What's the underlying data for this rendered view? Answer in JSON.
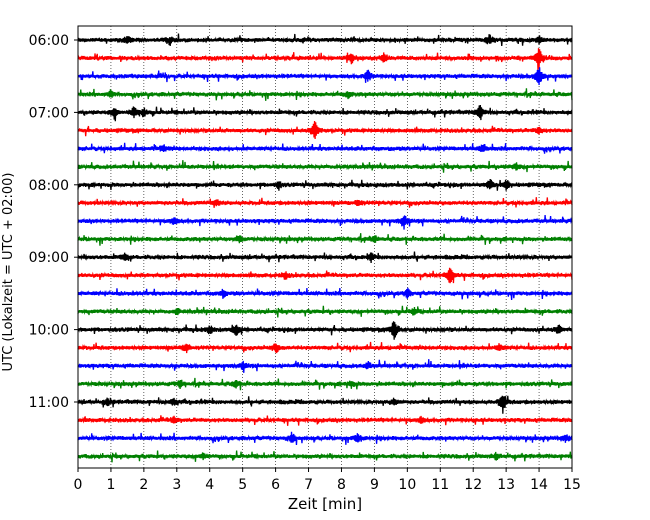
{
  "chart_data": {
    "type": "line",
    "title": "",
    "xlabel": "Zeit  [min]",
    "ylabel": "UTC (Lokalzeit = UTC + 02:00)",
    "xlim": [
      0,
      15
    ],
    "x_ticks": [
      "0",
      "1",
      "2",
      "3",
      "4",
      "5",
      "6",
      "7",
      "8",
      "9",
      "10",
      "11",
      "12",
      "13",
      "14",
      "15"
    ],
    "y_ticks": [
      {
        "label": "06:00",
        "trace": 0
      },
      {
        "label": "07:00",
        "trace": 4
      },
      {
        "label": "08:00",
        "trace": 8
      },
      {
        "label": "09:00",
        "trace": 12
      },
      {
        "label": "10:00",
        "trace": 16
      },
      {
        "label": "11:00",
        "trace": 20
      }
    ],
    "grid": "vertical dotted at each minute",
    "trace_colors": [
      "#000000",
      "#ff0000",
      "#0000ff",
      "#008000"
    ],
    "trace_minutes": 15,
    "series": [
      {
        "start": "06:00",
        "color": "#000000",
        "events": [
          [
            1.5,
            0.4
          ],
          [
            2.8,
            0.35
          ],
          [
            12.5,
            0.45
          ],
          [
            14.0,
            0.3
          ]
        ]
      },
      {
        "start": "06:15",
        "color": "#ff0000",
        "events": [
          [
            8.3,
            0.5
          ],
          [
            9.3,
            0.45
          ],
          [
            14.0,
            1.0
          ]
        ]
      },
      {
        "start": "06:30",
        "color": "#0000ff",
        "events": [
          [
            8.8,
            0.5
          ],
          [
            14.0,
            0.9
          ]
        ]
      },
      {
        "start": "06:45",
        "color": "#008000",
        "events": [
          [
            1.0,
            0.3
          ],
          [
            8.2,
            0.3
          ]
        ]
      },
      {
        "start": "07:00",
        "color": "#000000",
        "events": [
          [
            1.1,
            0.55
          ],
          [
            1.7,
            0.5
          ],
          [
            2.0,
            0.4
          ],
          [
            12.2,
            0.7
          ]
        ]
      },
      {
        "start": "07:15",
        "color": "#ff0000",
        "events": [
          [
            7.2,
            1.0
          ],
          [
            14.0,
            0.3
          ]
        ]
      },
      {
        "start": "07:30",
        "color": "#0000ff",
        "events": [
          [
            2.6,
            0.3
          ],
          [
            12.3,
            0.4
          ]
        ]
      },
      {
        "start": "07:45",
        "color": "#008000",
        "events": [
          [
            13.3,
            0.3
          ]
        ]
      },
      {
        "start": "08:00",
        "color": "#000000",
        "events": [
          [
            6.1,
            0.35
          ],
          [
            12.5,
            0.6
          ],
          [
            13.0,
            0.45
          ]
        ]
      },
      {
        "start": "08:15",
        "color": "#ff0000",
        "events": [
          [
            4.2,
            0.3
          ],
          [
            8.5,
            0.35
          ]
        ]
      },
      {
        "start": "08:30",
        "color": "#0000ff",
        "events": [
          [
            2.9,
            0.35
          ],
          [
            9.9,
            0.7
          ]
        ]
      },
      {
        "start": "08:45",
        "color": "#008000",
        "events": [
          [
            4.9,
            0.35
          ],
          [
            9.0,
            0.3
          ]
        ]
      },
      {
        "start": "09:00",
        "color": "#000000",
        "events": [
          [
            1.4,
            0.4
          ],
          [
            8.9,
            0.35
          ]
        ]
      },
      {
        "start": "09:15",
        "color": "#ff0000",
        "events": [
          [
            11.3,
            0.8
          ],
          [
            6.3,
            0.3
          ]
        ]
      },
      {
        "start": "09:30",
        "color": "#0000ff",
        "events": [
          [
            4.4,
            0.3
          ],
          [
            10.0,
            0.4
          ]
        ]
      },
      {
        "start": "09:45",
        "color": "#008000",
        "events": [
          [
            3.0,
            0.3
          ],
          [
            10.2,
            0.3
          ]
        ]
      },
      {
        "start": "10:00",
        "color": "#000000",
        "events": [
          [
            4.0,
            0.4
          ],
          [
            4.8,
            0.55
          ],
          [
            9.6,
            1.0
          ],
          [
            14.6,
            0.4
          ]
        ]
      },
      {
        "start": "10:15",
        "color": "#ff0000",
        "events": [
          [
            3.3,
            0.5
          ],
          [
            6.0,
            0.45
          ],
          [
            12.8,
            0.35
          ]
        ]
      },
      {
        "start": "10:30",
        "color": "#0000ff",
        "events": [
          [
            5.0,
            0.35
          ],
          [
            8.8,
            0.3
          ]
        ]
      },
      {
        "start": "10:45",
        "color": "#008000",
        "events": [
          [
            3.1,
            0.35
          ],
          [
            4.8,
            0.35
          ],
          [
            8.3,
            0.3
          ]
        ]
      },
      {
        "start": "11:00",
        "color": "#000000",
        "events": [
          [
            0.9,
            0.35
          ],
          [
            2.9,
            0.3
          ],
          [
            9.6,
            0.3
          ],
          [
            12.9,
            1.0
          ]
        ]
      },
      {
        "start": "11:15",
        "color": "#ff0000",
        "events": [
          [
            2.9,
            0.3
          ],
          [
            10.4,
            0.3
          ]
        ]
      },
      {
        "start": "11:30",
        "color": "#0000ff",
        "events": [
          [
            6.5,
            0.5
          ],
          [
            8.5,
            0.45
          ],
          [
            14.8,
            0.35
          ]
        ]
      },
      {
        "start": "11:45",
        "color": "#008000",
        "events": [
          [
            3.8,
            0.3
          ],
          [
            12.7,
            0.3
          ]
        ]
      }
    ]
  }
}
